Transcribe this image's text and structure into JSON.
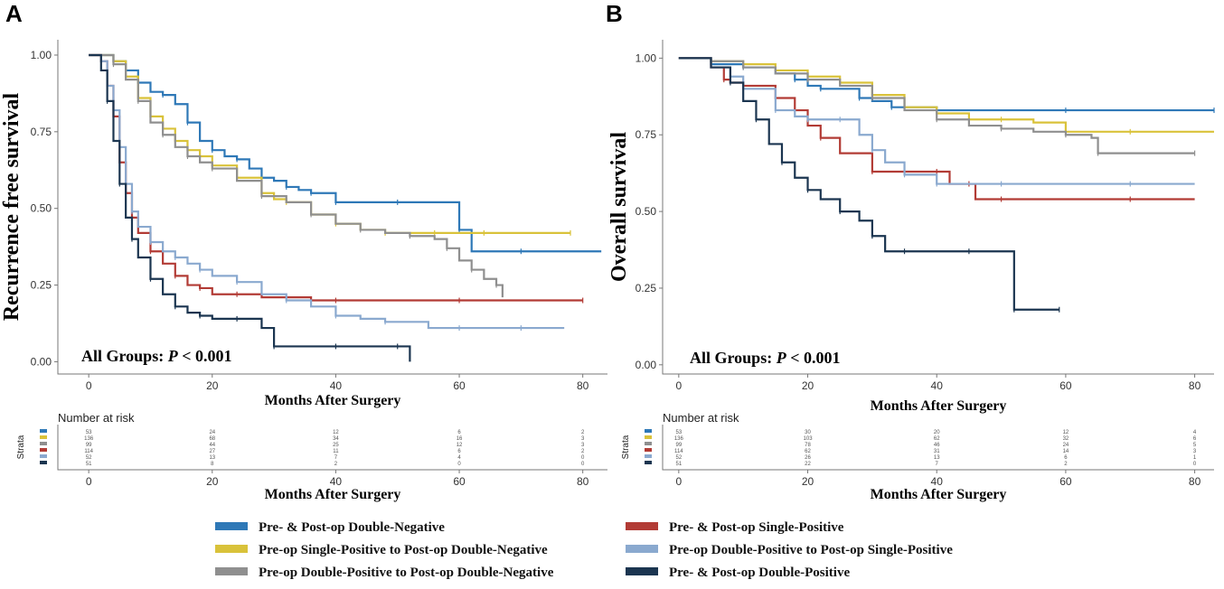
{
  "chart_data": [
    {
      "type": "line",
      "panel": "A",
      "title": "",
      "xlabel": "Months After Surgery",
      "ylabel": "Recurrence free survival",
      "xlim": [
        -5,
        84
      ],
      "ylim": [
        -0.04,
        1.05
      ],
      "xticks": [
        0,
        20,
        40,
        60,
        80
      ],
      "yticks": [
        0.0,
        0.25,
        0.5,
        0.75,
        1.0
      ],
      "ytick_labels": [
        "0.00",
        "0.25",
        "0.50",
        "0.75",
        "1.00"
      ],
      "annotation": {
        "prefix": "All Groups: ",
        "italic": "P",
        "suffix": " < 0.001"
      },
      "series": [
        {
          "name": "Pre- & Post-op Double-Negative",
          "color": "#2e78b7",
          "x": [
            0,
            2,
            4,
            6,
            8,
            10,
            12,
            14,
            16,
            18,
            20,
            22,
            24,
            26,
            28,
            30,
            32,
            34,
            36,
            38,
            40,
            45,
            50,
            58,
            60,
            62,
            70,
            83
          ],
          "y": [
            1.0,
            1.0,
            0.98,
            0.95,
            0.91,
            0.88,
            0.87,
            0.84,
            0.78,
            0.72,
            0.69,
            0.67,
            0.66,
            0.63,
            0.6,
            0.59,
            0.57,
            0.56,
            0.55,
            0.55,
            0.52,
            0.52,
            0.52,
            0.52,
            0.43,
            0.36,
            0.36,
            0.36
          ]
        },
        {
          "name": "Pre-op Single-Positive to Post-op Double-Negative",
          "color": "#d9c23a",
          "x": [
            0,
            2,
            4,
            6,
            8,
            10,
            12,
            14,
            16,
            18,
            20,
            24,
            28,
            30,
            32,
            36,
            40,
            44,
            48,
            52,
            56,
            60,
            64,
            70,
            78
          ],
          "y": [
            1.0,
            1.0,
            0.98,
            0.93,
            0.86,
            0.8,
            0.76,
            0.72,
            0.69,
            0.67,
            0.64,
            0.6,
            0.55,
            0.53,
            0.52,
            0.48,
            0.45,
            0.43,
            0.42,
            0.42,
            0.42,
            0.42,
            0.42,
            0.42,
            0.42
          ]
        },
        {
          "name": "Pre-op Double-Positive to Post-op Double-Negative",
          "color": "#8f8f8f",
          "x": [
            0,
            2,
            4,
            6,
            8,
            10,
            12,
            14,
            16,
            18,
            20,
            24,
            28,
            32,
            36,
            40,
            44,
            48,
            52,
            56,
            58,
            60,
            62,
            64,
            66,
            67
          ],
          "y": [
            1.0,
            1.0,
            0.97,
            0.92,
            0.85,
            0.78,
            0.74,
            0.7,
            0.67,
            0.65,
            0.63,
            0.59,
            0.54,
            0.52,
            0.48,
            0.45,
            0.43,
            0.42,
            0.41,
            0.4,
            0.37,
            0.33,
            0.3,
            0.27,
            0.25,
            0.21
          ]
        },
        {
          "name": "Pre- & Post-op Single-Positive",
          "color": "#b23b35",
          "x": [
            0,
            2,
            3,
            4,
            5,
            6,
            7,
            8,
            10,
            12,
            14,
            16,
            18,
            20,
            24,
            28,
            32,
            36,
            40,
            50,
            60,
            70,
            80
          ],
          "y": [
            1.0,
            0.98,
            0.9,
            0.8,
            0.65,
            0.55,
            0.47,
            0.42,
            0.36,
            0.32,
            0.28,
            0.25,
            0.24,
            0.22,
            0.22,
            0.21,
            0.21,
            0.2,
            0.2,
            0.2,
            0.2,
            0.2,
            0.2
          ]
        },
        {
          "name": "Pre-op Double-Positive to Post-op Single-Positive",
          "color": "#8aa9cf",
          "x": [
            0,
            2,
            3,
            4,
            5,
            6,
            7,
            8,
            10,
            12,
            14,
            16,
            18,
            20,
            24,
            28,
            32,
            36,
            40,
            44,
            48,
            55,
            60,
            65,
            70,
            77
          ],
          "y": [
            1.0,
            0.98,
            0.9,
            0.82,
            0.7,
            0.58,
            0.49,
            0.44,
            0.39,
            0.36,
            0.34,
            0.32,
            0.3,
            0.28,
            0.26,
            0.22,
            0.2,
            0.18,
            0.15,
            0.14,
            0.13,
            0.11,
            0.11,
            0.11,
            0.11,
            0.11
          ]
        },
        {
          "name": "Pre- & Post-op Double-Positive",
          "color": "#1b3550",
          "x": [
            0,
            2,
            3,
            4,
            5,
            6,
            7,
            8,
            10,
            12,
            14,
            16,
            18,
            20,
            24,
            28,
            30,
            35,
            40,
            45,
            50,
            52
          ],
          "y": [
            1.0,
            0.95,
            0.85,
            0.72,
            0.58,
            0.47,
            0.4,
            0.34,
            0.27,
            0.22,
            0.18,
            0.16,
            0.15,
            0.14,
            0.14,
            0.11,
            0.05,
            0.05,
            0.05,
            0.05,
            0.05,
            0.0
          ]
        }
      ]
    },
    {
      "type": "line",
      "panel": "B",
      "title": "",
      "xlabel": "Months After Surgery",
      "ylabel": "Overall survival",
      "xlim": [
        -2.5,
        83
      ],
      "ylim": [
        -0.03,
        1.06
      ],
      "xticks": [
        0,
        20,
        40,
        60,
        80
      ],
      "yticks": [
        0.0,
        0.25,
        0.5,
        0.75,
        1.0
      ],
      "ytick_labels": [
        "0.00",
        "0.25",
        "0.50",
        "0.75",
        "1.00"
      ],
      "annotation": {
        "prefix": "All Groups: ",
        "italic": "P",
        "suffix": " < 0.001"
      },
      "series": [
        {
          "name": "Pre- & Post-op Double-Negative",
          "color": "#2e78b7",
          "x": [
            0,
            5,
            10,
            15,
            18,
            20,
            22,
            25,
            28,
            30,
            33,
            36,
            40,
            50,
            60,
            70,
            83
          ],
          "y": [
            1.0,
            0.98,
            0.97,
            0.95,
            0.93,
            0.91,
            0.9,
            0.9,
            0.87,
            0.86,
            0.84,
            0.84,
            0.83,
            0.83,
            0.83,
            0.83,
            0.83
          ]
        },
        {
          "name": "Pre-op Single-Positive to Post-op Double-Negative",
          "color": "#d9c23a",
          "x": [
            0,
            5,
            10,
            15,
            20,
            25,
            30,
            35,
            40,
            45,
            50,
            55,
            60,
            65,
            70,
            83
          ],
          "y": [
            1.0,
            0.99,
            0.98,
            0.96,
            0.94,
            0.92,
            0.88,
            0.84,
            0.82,
            0.8,
            0.8,
            0.79,
            0.76,
            0.76,
            0.76,
            0.76
          ]
        },
        {
          "name": "Pre-op Double-Positive to Post-op Double-Negative",
          "color": "#8f8f8f",
          "x": [
            0,
            5,
            10,
            15,
            20,
            25,
            30,
            35,
            40,
            45,
            50,
            55,
            60,
            64,
            65,
            70,
            80
          ],
          "y": [
            1.0,
            0.99,
            0.97,
            0.95,
            0.93,
            0.91,
            0.87,
            0.83,
            0.8,
            0.78,
            0.77,
            0.76,
            0.75,
            0.74,
            0.69,
            0.69,
            0.69
          ]
        },
        {
          "name": "Pre- & Post-op Single-Positive",
          "color": "#b23b35",
          "x": [
            0,
            5,
            7,
            8,
            10,
            15,
            18,
            20,
            22,
            25,
            30,
            35,
            40,
            42,
            45,
            46,
            50,
            60,
            70,
            80
          ],
          "y": [
            1.0,
            0.97,
            0.93,
            0.92,
            0.91,
            0.87,
            0.83,
            0.78,
            0.74,
            0.69,
            0.63,
            0.63,
            0.63,
            0.59,
            0.59,
            0.54,
            0.54,
            0.54,
            0.54,
            0.54
          ]
        },
        {
          "name": "Pre-op Double-Positive to Post-op Single-Positive",
          "color": "#8aa9cf",
          "x": [
            0,
            5,
            8,
            10,
            15,
            18,
            20,
            22,
            25,
            28,
            30,
            32,
            35,
            38,
            40,
            42,
            50,
            60,
            70,
            80
          ],
          "y": [
            1.0,
            0.97,
            0.94,
            0.9,
            0.83,
            0.81,
            0.8,
            0.8,
            0.8,
            0.75,
            0.7,
            0.66,
            0.62,
            0.62,
            0.59,
            0.59,
            0.59,
            0.59,
            0.59,
            0.59
          ]
        },
        {
          "name": "Pre- & Post-op Double-Positive",
          "color": "#1b3550",
          "x": [
            0,
            5,
            8,
            10,
            12,
            14,
            16,
            18,
            20,
            22,
            25,
            28,
            30,
            32,
            35,
            40,
            45,
            50,
            52,
            55,
            59
          ],
          "y": [
            1.0,
            0.97,
            0.92,
            0.86,
            0.8,
            0.72,
            0.66,
            0.61,
            0.57,
            0.54,
            0.5,
            0.47,
            0.42,
            0.37,
            0.37,
            0.37,
            0.37,
            0.37,
            0.18,
            0.18,
            0.18
          ]
        }
      ]
    }
  ],
  "risk_tables": [
    {
      "title": "Number at risk",
      "strata_label": "Strata",
      "xlabel": "Months After Surgery",
      "rows": [
        [
          "53",
          "24",
          "12",
          "6",
          "2"
        ],
        [
          "136",
          "68",
          "34",
          "16",
          "3"
        ],
        [
          "99",
          "44",
          "25",
          "12",
          "3"
        ],
        [
          "114",
          "27",
          "11",
          "6",
          "2"
        ],
        [
          "52",
          "13",
          "7",
          "4",
          "0"
        ],
        [
          "51",
          "8",
          "2",
          "0",
          "0"
        ]
      ]
    },
    {
      "title": "Number at risk",
      "strata_label": "Strata",
      "xlabel": "Months After Surgery",
      "rows": [
        [
          "53",
          "30",
          "20",
          "12",
          "4"
        ],
        [
          "136",
          "103",
          "62",
          "32",
          "6"
        ],
        [
          "99",
          "78",
          "46",
          "24",
          "5"
        ],
        [
          "114",
          "62",
          "31",
          "14",
          "3"
        ],
        [
          "52",
          "26",
          "13",
          "6",
          "1"
        ],
        [
          "51",
          "22",
          "7",
          "2",
          "0"
        ]
      ]
    }
  ],
  "legend": {
    "left": [
      {
        "label": "Pre- & Post-op Double-Negative",
        "color": "#2e78b7"
      },
      {
        "label": "Pre-op Single-Positive to Post-op Double-Negative",
        "color": "#d9c23a"
      },
      {
        "label": "Pre-op Double-Positive to Post-op Double-Negative",
        "color": "#8f8f8f"
      }
    ],
    "right": [
      {
        "label": "Pre- & Post-op Single-Positive",
        "color": "#b23b35"
      },
      {
        "label": "Pre-op Double-Positive to Post-op Single-Positive",
        "color": "#8aa9cf"
      },
      {
        "label": "Pre- & Post-op Double-Positive",
        "color": "#1b3550"
      }
    ]
  }
}
